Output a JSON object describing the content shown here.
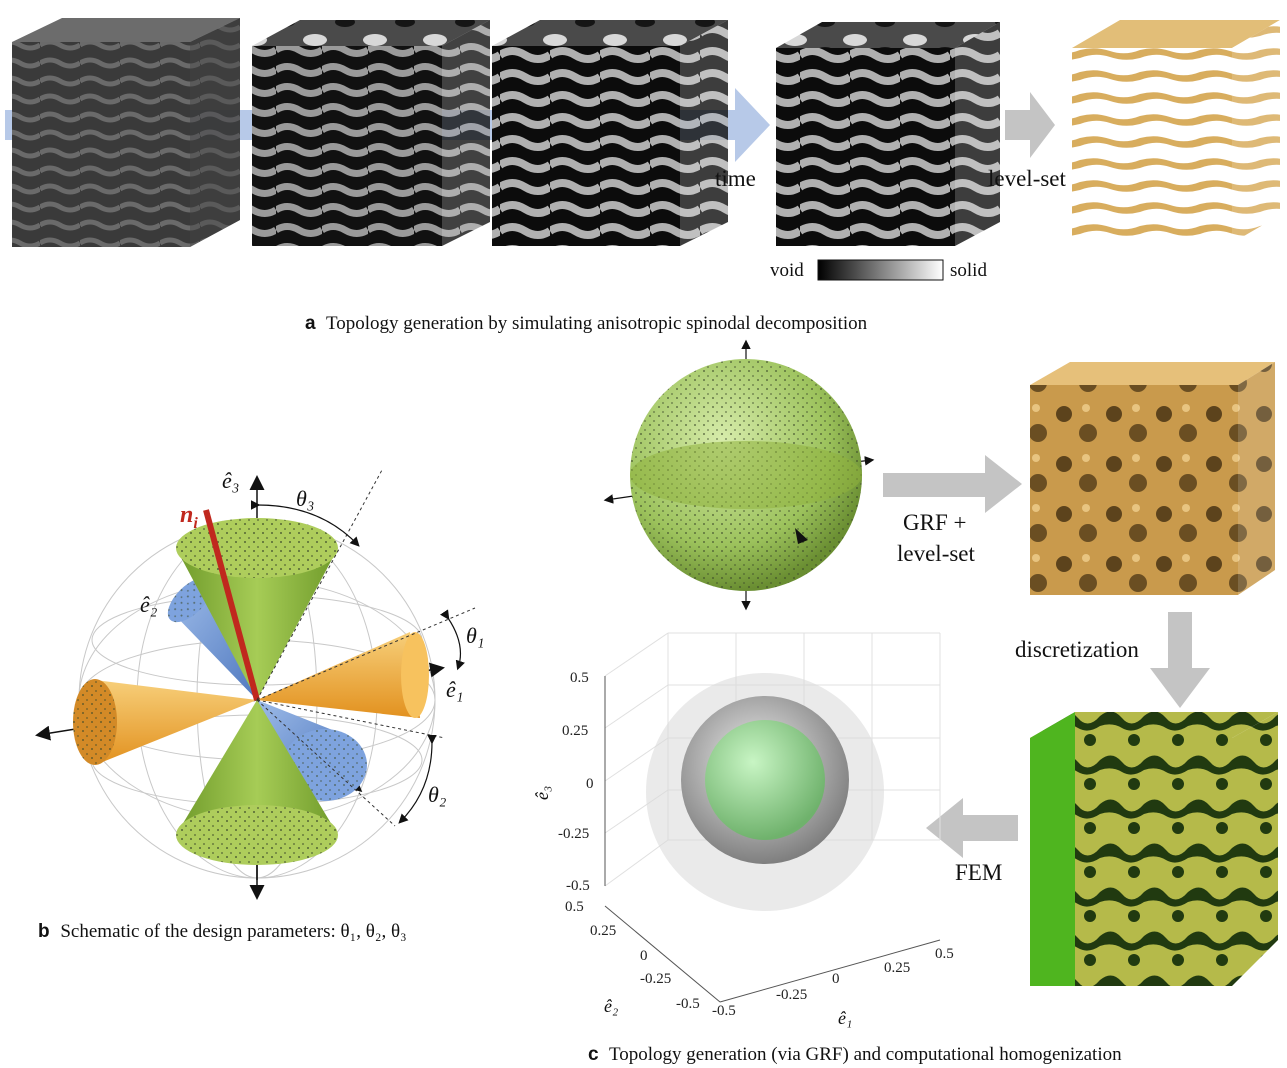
{
  "panel_a": {
    "letter": "a",
    "caption": "Topology generation by simulating anisotropic spinodal decomposition",
    "arrow_label_time": "time",
    "arrow_label_levelset": "level-set",
    "colorbar_left": "void",
    "colorbar_right": "solid"
  },
  "panel_b": {
    "letter": "b",
    "caption": "Schematic of the design parameters: θ₁, θ₂, θ₃",
    "label_e3": "ê₃",
    "label_e2": "ê₂",
    "label_e1": "ê₁",
    "label_ni": "n",
    "label_ni_sub": "i",
    "label_theta1": "θ₁",
    "label_theta2": "θ₂",
    "label_theta3": "θ₃"
  },
  "panel_c": {
    "letter": "c",
    "caption": "Topology generation (via GRF) and computational homogenization",
    "arrow_grf_line1": "GRF +",
    "arrow_grf_line2": "level-set",
    "arrow_discretization": "discretization",
    "arrow_fem": "FEM",
    "plot": {
      "e3_label": "ê₃",
      "e2_label": "ê₂",
      "e1_label": "ê₁",
      "e3_ticks": [
        "0.5",
        "0.25",
        "0",
        "-0.25",
        "-0.5"
      ],
      "e2_ticks": [
        "0.5",
        "0.25",
        "0",
        "-0.25",
        "-0.5"
      ],
      "e1_ticks": [
        "-0.5",
        "-0.25",
        "0",
        "0.25",
        "0.5"
      ]
    }
  },
  "colors": {
    "flow_arrow": "#b7c9e8",
    "gray_arrow": "#c4c4c4",
    "gold": "#d8ad5e",
    "green_cone": "#8fb83c",
    "orange_cone": "#f1a93a",
    "blue_cone": "#6f98d8",
    "ni_red": "#c0281e"
  }
}
